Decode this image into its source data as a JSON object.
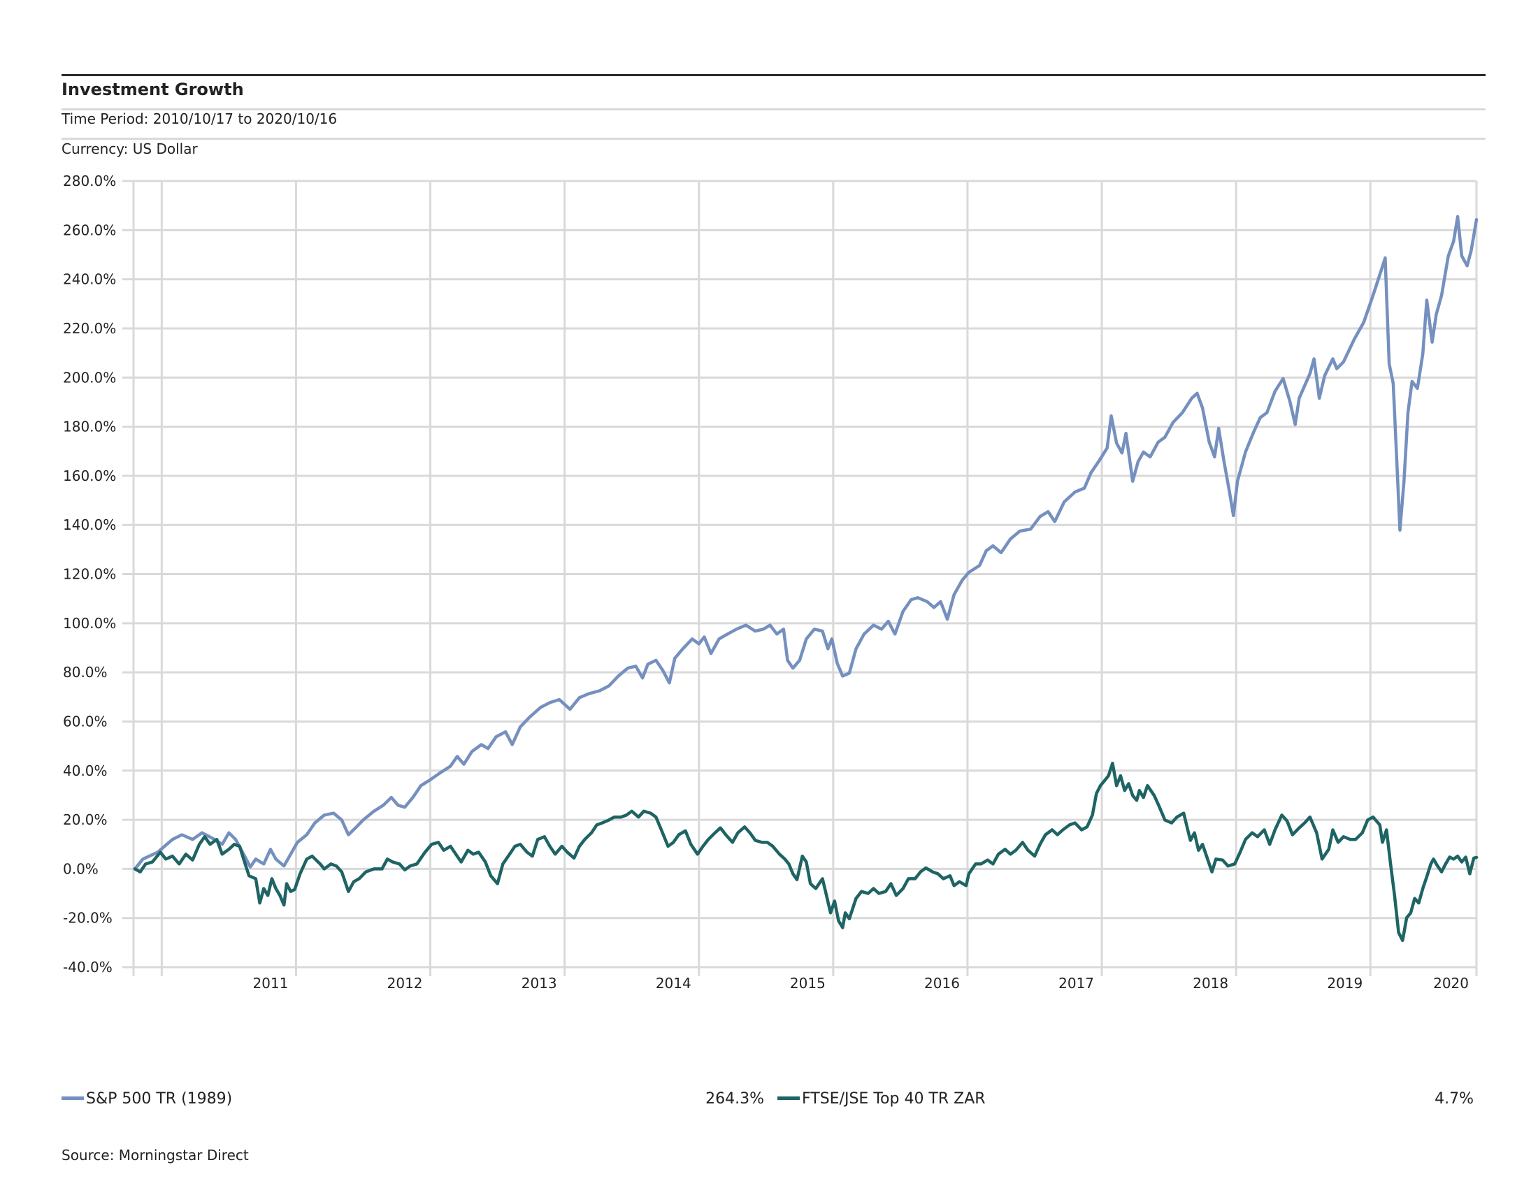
{
  "header": {
    "title": "Investment Growth",
    "time_period": "Time Period: 2010/10/17 to 2020/10/16",
    "currency": "Currency: US Dollar"
  },
  "legend": [
    {
      "name": "S&P 500 TR (1989)",
      "final_value": "264.3%",
      "color": "#7590bf"
    },
    {
      "name": "FTSE/JSE Top 40 TR ZAR",
      "final_value": "4.7%",
      "color": "#1e6464"
    }
  ],
  "source": "Source: Morningstar Direct",
  "chart_data": {
    "type": "line",
    "title": "Investment Growth",
    "xlabel": "",
    "ylabel": "",
    "x_units": "decimal year",
    "xlim": [
      2010.79,
      2020.79
    ],
    "ylim": [
      -40,
      280
    ],
    "grid": true,
    "legend_position": "bottom",
    "y_ticks": [
      -40,
      -20,
      0,
      20,
      40,
      60,
      80,
      100,
      120,
      140,
      160,
      180,
      200,
      220,
      240,
      260,
      280
    ],
    "y_tick_labels": [
      "-40.0%",
      "-20.0%",
      "0.0%",
      "20.0%",
      "40.0%",
      "60.0%",
      "80.0%",
      "100.0%",
      "120.0%",
      "140.0%",
      "160.0%",
      "180.0%",
      "200.0%",
      "220.0%",
      "240.0%",
      "260.0%",
      "280.0%"
    ],
    "x_gridlines": [
      2011,
      2012,
      2013,
      2014,
      2015,
      2016,
      2017,
      2018,
      2019,
      2020
    ],
    "x_tick_labels": [
      "2011",
      "2012",
      "2013",
      "2014",
      "2015",
      "2016",
      "2017",
      "2018",
      "2019",
      "2020"
    ],
    "series": [
      {
        "name": "S&P 500 TR (1989)",
        "color": "#7590bf",
        "final": 264.3,
        "x": [
          2010.8,
          2010.86,
          2010.97,
          2011.08,
          2011.15,
          2011.23,
          2011.3,
          2011.37,
          2011.45,
          2011.5,
          2011.55,
          2011.61,
          2011.66,
          2011.7,
          2011.76,
          2011.81,
          2011.85,
          2011.91,
          2011.96,
          2012.01,
          2012.08,
          2012.14,
          2012.21,
          2012.28,
          2012.34,
          2012.39,
          2012.45,
          2012.5,
          2012.58,
          2012.65,
          2012.71,
          2012.76,
          2012.81,
          2012.87,
          2012.93,
          2013.0,
          2013.07,
          2013.15,
          2013.2,
          2013.25,
          2013.31,
          2013.38,
          2013.43,
          2013.49,
          2013.56,
          2013.61,
          2013.67,
          2013.74,
          2013.82,
          2013.89,
          2013.96,
          2014.04,
          2014.11,
          2014.18,
          2014.26,
          2014.33,
          2014.4,
          2014.47,
          2014.53,
          2014.58,
          2014.62,
          2014.68,
          2014.73,
          2014.78,
          2014.82,
          2014.88,
          2014.95,
          2015.0,
          2015.04,
          2015.09,
          2015.15,
          2015.2,
          2015.28,
          2015.35,
          2015.42,
          2015.48,
          2015.53,
          2015.58,
          2015.63,
          2015.66,
          2015.7,
          2015.75,
          2015.8,
          2015.86,
          2015.92,
          2015.96,
          2015.99,
          2016.03,
          2016.07,
          2016.12,
          2016.17,
          2016.23,
          2016.3,
          2016.36,
          2016.41,
          2016.46,
          2016.52,
          2016.58,
          2016.63,
          2016.7,
          2016.75,
          2016.8,
          2016.85,
          2016.9,
          2016.96,
          2017.01,
          2017.09,
          2017.14,
          2017.19,
          2017.25,
          2017.32,
          2017.39,
          2017.47,
          2017.54,
          2017.6,
          2017.65,
          2017.72,
          2017.8,
          2017.87,
          2017.92,
          2017.98,
          2018.04,
          2018.07,
          2018.11,
          2018.15,
          2018.18,
          2018.23,
          2018.27,
          2018.31,
          2018.36,
          2018.42,
          2018.47,
          2018.53,
          2018.6,
          2018.67,
          2018.71,
          2018.75,
          2018.8,
          2018.84,
          2018.87,
          2018.91,
          2018.95,
          2018.98,
          2019.01,
          2019.07,
          2019.13,
          2019.18,
          2019.23,
          2019.29,
          2019.35,
          2019.4,
          2019.44,
          2019.47,
          2019.55,
          2019.58,
          2019.62,
          2019.66,
          2019.72,
          2019.75,
          2019.8,
          2019.88,
          2019.95,
          2020.02,
          2020.08,
          2020.11,
          2020.14,
          2020.17,
          2020.2,
          2020.22,
          2020.25,
          2020.28,
          2020.31,
          2020.35,
          2020.39,
          2020.42,
          2020.46,
          2020.49,
          2020.53,
          2020.58,
          2020.62,
          2020.65,
          2020.68,
          2020.72,
          2020.75,
          2020.79
        ],
        "values": [
          0.0,
          4.0,
          6.8,
          12.0,
          13.9,
          12.0,
          14.7,
          12.7,
          10.0,
          14.7,
          12.0,
          6.0,
          0.8,
          4.0,
          2.0,
          8.0,
          4.0,
          1.2,
          6.0,
          10.8,
          13.9,
          18.7,
          21.9,
          22.7,
          19.9,
          13.9,
          17.1,
          19.9,
          23.5,
          25.9,
          29.1,
          25.9,
          25.1,
          29.1,
          33.9,
          36.3,
          39.0,
          41.8,
          45.8,
          42.6,
          47.8,
          50.6,
          49.0,
          53.8,
          55.8,
          50.6,
          57.8,
          61.8,
          65.7,
          67.7,
          68.9,
          65.0,
          69.7,
          71.3,
          72.5,
          74.5,
          78.5,
          81.7,
          82.5,
          77.7,
          83.3,
          84.9,
          80.9,
          75.7,
          85.7,
          89.6,
          93.6,
          91.6,
          94.4,
          87.7,
          93.6,
          95.2,
          97.6,
          99.2,
          96.8,
          97.6,
          99.2,
          95.6,
          97.6,
          84.9,
          81.7,
          84.9,
          93.6,
          97.6,
          96.8,
          89.6,
          93.6,
          83.7,
          78.5,
          79.7,
          89.6,
          95.6,
          99.2,
          97.6,
          100.8,
          95.6,
          104.8,
          109.6,
          110.4,
          108.8,
          106.4,
          108.8,
          101.6,
          111.6,
          117.5,
          120.7,
          123.5,
          129.5,
          131.5,
          128.7,
          134.3,
          137.5,
          138.3,
          143.4,
          145.4,
          141.4,
          149.4,
          153.4,
          155.0,
          161.3,
          166.1,
          171.3,
          184.4,
          173.3,
          169.3,
          177.3,
          157.8,
          165.7,
          169.7,
          167.7,
          173.7,
          175.7,
          181.7,
          185.7,
          191.6,
          193.6,
          187.6,
          173.7,
          167.7,
          179.3,
          165.7,
          153.8,
          143.8,
          157.8,
          169.7,
          177.7,
          183.7,
          185.7,
          194.4,
          199.6,
          190.4,
          180.9,
          191.6,
          201.6,
          207.6,
          191.6,
          200.8,
          207.6,
          203.6,
          206.4,
          215.6,
          222.4,
          233.5,
          243.5,
          248.7,
          205.6,
          197.6,
          161.8,
          137.9,
          157.8,
          185.7,
          198.4,
          195.6,
          209.6,
          231.5,
          214.4,
          225.6,
          233.5,
          249.5,
          255.5,
          265.5,
          249.5,
          245.5,
          251.5,
          264.3
        ]
      },
      {
        "name": "FTSE/JSE Top 40 TR ZAR",
        "color": "#1e6464",
        "final": 4.7,
        "x": [
          2010.8,
          2010.84,
          2010.88,
          2010.93,
          2010.99,
          2011.03,
          2011.08,
          2011.13,
          2011.18,
          2011.23,
          2011.28,
          2011.32,
          2011.36,
          2011.41,
          2011.45,
          2011.5,
          2011.54,
          2011.58,
          2011.61,
          2011.65,
          2011.7,
          2011.73,
          2011.76,
          2011.79,
          2011.82,
          2011.85,
          2011.88,
          2011.91,
          2011.93,
          2011.96,
          2011.99,
          2012.03,
          2012.08,
          2012.12,
          2012.18,
          2012.21,
          2012.26,
          2012.3,
          2012.34,
          2012.39,
          2012.43,
          2012.47,
          2012.52,
          2012.58,
          2012.64,
          2012.68,
          2012.72,
          2012.77,
          2012.81,
          2012.85,
          2012.9,
          2012.96,
          2013.01,
          2013.06,
          2013.1,
          2013.15,
          2013.19,
          2013.23,
          2013.28,
          2013.32,
          2013.36,
          2013.41,
          2013.45,
          2013.5,
          2013.54,
          2013.58,
          2013.63,
          2013.67,
          2013.72,
          2013.76,
          2013.8,
          2013.85,
          2013.89,
          2013.93,
          2013.98,
          2014.02,
          2014.07,
          2014.11,
          2014.15,
          2014.2,
          2014.24,
          2014.28,
          2014.33,
          2014.37,
          2014.42,
          2014.46,
          2014.5,
          2014.55,
          2014.59,
          2014.64,
          2014.68,
          2014.72,
          2014.77,
          2014.81,
          2014.85,
          2014.9,
          2014.94,
          2014.99,
          2015.03,
          2015.07,
          2015.12,
          2015.16,
          2015.2,
          2015.25,
          2015.29,
          2015.34,
          2015.38,
          2015.42,
          2015.47,
          2015.51,
          2015.55,
          2015.6,
          2015.64,
          2015.67,
          2015.7,
          2015.73,
          2015.77,
          2015.8,
          2015.83,
          2015.87,
          2015.92,
          2015.95,
          2015.98,
          2016.01,
          2016.04,
          2016.07,
          2016.09,
          2016.12,
          2016.17,
          2016.21,
          2016.26,
          2016.3,
          2016.34,
          2016.39,
          2016.43,
          2016.47,
          2016.52,
          2016.56,
          2016.61,
          2016.65,
          2016.69,
          2016.74,
          2016.78,
          2016.82,
          2016.87,
          2016.9,
          2016.94,
          2016.99,
          2017.01,
          2017.06,
          2017.1,
          2017.15,
          2017.19,
          2017.23,
          2017.28,
          2017.32,
          2017.36,
          2017.41,
          2017.45,
          2017.5,
          2017.54,
          2017.58,
          2017.63,
          2017.67,
          2017.71,
          2017.76,
          2017.8,
          2017.85,
          2017.89,
          2017.93,
          2017.96,
          2017.99,
          2018.02,
          2018.05,
          2018.08,
          2018.11,
          2018.14,
          2018.17,
          2018.2,
          2018.23,
          2018.26,
          2018.28,
          2018.31,
          2018.34,
          2018.39,
          2018.43,
          2018.47,
          2018.52,
          2018.56,
          2018.61,
          2018.64,
          2018.66,
          2018.69,
          2018.72,
          2018.75,
          2018.78,
          2018.82,
          2018.85,
          2018.9,
          2018.94,
          2018.99,
          2019.03,
          2019.07,
          2019.12,
          2019.16,
          2019.21,
          2019.25,
          2019.29,
          2019.34,
          2019.38,
          2019.42,
          2019.47,
          2019.51,
          2019.55,
          2019.6,
          2019.64,
          2019.69,
          2019.72,
          2019.76,
          2019.8,
          2019.85,
          2019.89,
          2019.94,
          2019.98,
          2020.02,
          2020.07,
          2020.09,
          2020.12,
          2020.15,
          2020.18,
          2020.21,
          2020.24,
          2020.27,
          2020.3,
          2020.33,
          2020.36,
          2020.39,
          2020.42,
          2020.45,
          2020.47,
          2020.5,
          2020.53,
          2020.56,
          2020.59,
          2020.62,
          2020.65,
          2020.68,
          2020.71,
          2020.74,
          2020.77,
          2020.79
        ],
        "values": [
          0.0,
          -1.2,
          2.0,
          2.8,
          6.8,
          4.0,
          5.2,
          2.0,
          6.0,
          3.6,
          10.0,
          13.1,
          10.0,
          12.0,
          6.0,
          8.0,
          10.0,
          9.2,
          4.0,
          -2.8,
          -4.0,
          -13.9,
          -8.0,
          -10.8,
          -4.0,
          -8.0,
          -10.8,
          -14.7,
          -6.0,
          -9.2,
          -8.4,
          -2.0,
          4.0,
          5.2,
          2.0,
          0.0,
          2.0,
          1.2,
          -1.2,
          -9.2,
          -5.2,
          -4.0,
          -1.2,
          0.0,
          0.0,
          4.0,
          2.8,
          2.0,
          -0.4,
          1.2,
          2.0,
          6.8,
          10.0,
          10.8,
          7.6,
          9.2,
          6.0,
          2.8,
          7.6,
          6.0,
          6.8,
          2.8,
          -2.8,
          -6.0,
          2.0,
          5.2,
          9.2,
          10.0,
          6.8,
          5.2,
          12.0,
          13.1,
          9.2,
          6.0,
          9.2,
          6.8,
          4.4,
          9.2,
          12.0,
          14.7,
          17.9,
          18.7,
          19.9,
          21.1,
          21.1,
          21.9,
          23.5,
          21.1,
          23.5,
          22.7,
          21.1,
          15.9,
          9.2,
          10.8,
          13.9,
          15.5,
          10.0,
          6.0,
          9.2,
          12.0,
          14.7,
          16.7,
          13.9,
          10.8,
          14.7,
          17.1,
          14.7,
          11.6,
          10.8,
          10.8,
          9.2,
          6.0,
          4.0,
          2.0,
          -2.0,
          -4.4,
          5.2,
          2.8,
          -6.0,
          -8.0,
          -4.0,
          -10.8,
          -17.9,
          -13.1,
          -21.1,
          -23.9,
          -17.9,
          -20.3,
          -12.0,
          -9.2,
          -10.0,
          -8.0,
          -10.0,
          -9.2,
          -6.0,
          -10.8,
          -8.0,
          -4.0,
          -4.0,
          -1.2,
          0.4,
          -1.2,
          -2.0,
          -4.0,
          -2.8,
          -6.8,
          -5.2,
          -6.8,
          -2.0,
          2.0,
          2.0,
          3.6,
          2.0,
          6.0,
          8.0,
          6.0,
          7.6,
          10.8,
          7.6,
          5.2,
          10.0,
          13.9,
          15.9,
          13.9,
          15.9,
          17.9,
          18.7,
          15.9,
          17.1,
          21.9,
          30.7,
          33.9,
          35.9,
          37.9,
          43.0,
          33.9,
          37.9,
          31.9,
          34.7,
          29.9,
          27.9,
          31.9,
          29.1,
          33.9,
          29.9,
          25.1,
          19.9,
          18.7,
          21.1,
          22.7,
          15.9,
          11.6,
          14.7,
          7.6,
          10.0,
          5.2,
          -1.2,
          4.0,
          3.6,
          1.2,
          2.0,
          6.8,
          12.0,
          14.7,
          13.1,
          15.9,
          10.0,
          15.9,
          21.9,
          19.5,
          13.9,
          16.7,
          18.7,
          21.1,
          14.7,
          4.0,
          8.0,
          15.9,
          10.8,
          13.1,
          12.0,
          12.0,
          14.7,
          19.9,
          21.1,
          17.9,
          10.8,
          15.9,
          2.0,
          -10.8,
          -25.9,
          -29.1,
          -19.9,
          -17.9,
          -12.0,
          -13.9,
          -8.0,
          -3.2,
          2.0,
          4.0,
          1.2,
          -1.2,
          2.0,
          4.8,
          4.0,
          5.2,
          2.8,
          4.8,
          -2.0,
          4.4,
          4.7
        ]
      }
    ]
  }
}
